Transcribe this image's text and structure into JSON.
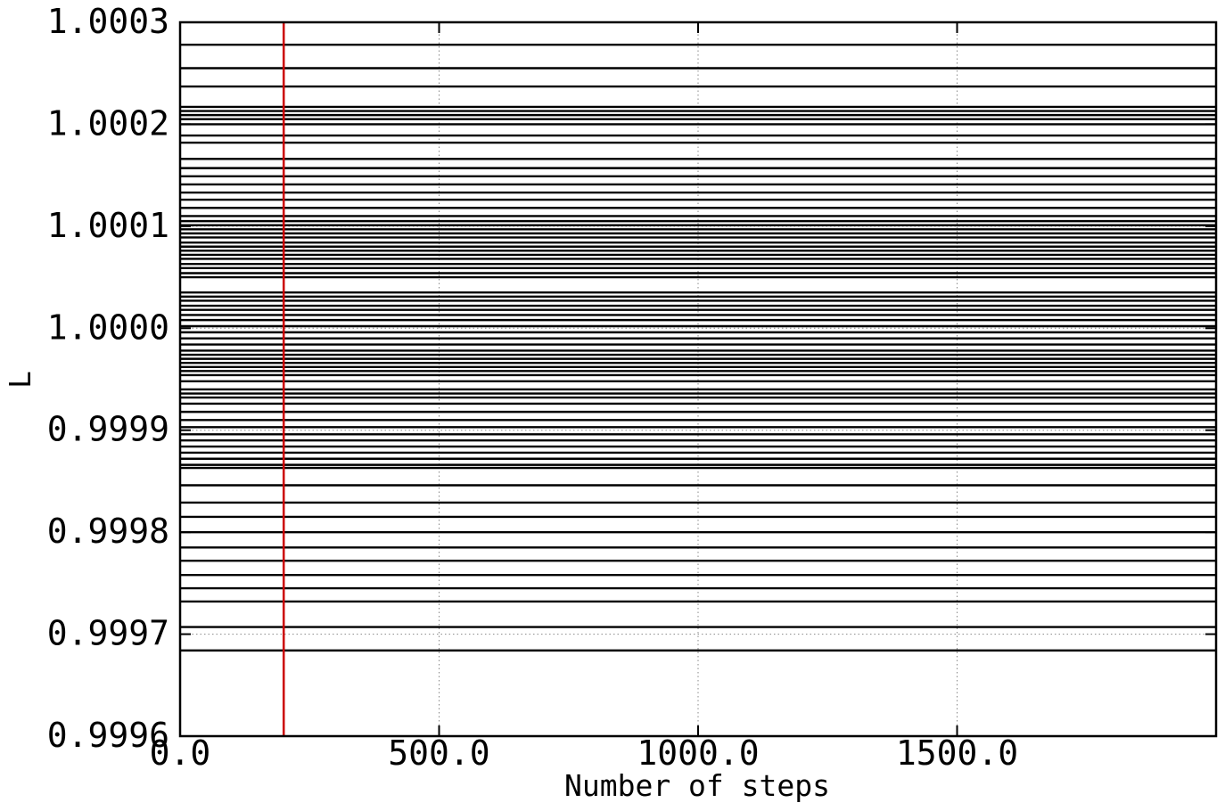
{
  "chart_data": {
    "type": "line",
    "title": "",
    "xlabel": "Number of steps",
    "ylabel": "L",
    "xlim": [
      0,
      2000
    ],
    "ylim": [
      0.9996,
      1.0003
    ],
    "xticks": [
      0,
      500,
      1000,
      1500
    ],
    "xtick_labels": [
      "0.0",
      "500.0",
      "1000.0",
      "1500.0"
    ],
    "yticks": [
      0.9996,
      0.9997,
      0.9998,
      0.9999,
      1.0,
      1.0001,
      1.0002,
      1.0003
    ],
    "ytick_labels": [
      "0.9996",
      "0.9997",
      "0.9998",
      "0.9999",
      "1.0000",
      "1.0001",
      "1.0002",
      "1.0003"
    ],
    "grid": true,
    "grid_style": "dotted",
    "series_color": "#000000",
    "series_note_values": "each series is a constant horizontal line at the listed L value over all steps",
    "series": [
      {
        "values": [
          1.000278
        ]
      },
      {
        "values": [
          1.000255
        ]
      },
      {
        "values": [
          1.000237
        ]
      },
      {
        "values": [
          1.000217
        ]
      },
      {
        "values": [
          1.000213
        ]
      },
      {
        "values": [
          1.000209
        ]
      },
      {
        "values": [
          1.000205
        ]
      },
      {
        "values": [
          1.0002
        ]
      },
      {
        "values": [
          1.000189
        ]
      },
      {
        "values": [
          1.000182
        ]
      },
      {
        "values": [
          1.000166
        ]
      },
      {
        "values": [
          1.000157
        ]
      },
      {
        "values": [
          1.000149
        ]
      },
      {
        "values": [
          1.000141
        ]
      },
      {
        "values": [
          1.000133
        ]
      },
      {
        "values": [
          1.000126
        ]
      },
      {
        "values": [
          1.000118
        ]
      },
      {
        "values": [
          1.00011
        ]
      },
      {
        "values": [
          1.000105
        ]
      },
      {
        "values": [
          1.000101
        ]
      },
      {
        "values": [
          1.000097
        ]
      },
      {
        "values": [
          1.000093
        ]
      },
      {
        "values": [
          1.000089
        ]
      },
      {
        "values": [
          1.000084
        ]
      },
      {
        "values": [
          1.00008
        ]
      },
      {
        "values": [
          1.000076
        ]
      },
      {
        "values": [
          1.000072
        ]
      },
      {
        "values": [
          1.000068
        ]
      },
      {
        "values": [
          1.000063
        ]
      },
      {
        "values": [
          1.000059
        ]
      },
      {
        "values": [
          1.000054
        ]
      },
      {
        "values": [
          1.00005
        ]
      },
      {
        "values": [
          1.000035
        ]
      },
      {
        "values": [
          1.000031
        ]
      },
      {
        "values": [
          1.000027
        ]
      },
      {
        "values": [
          1.000022
        ]
      },
      {
        "values": [
          1.000018
        ]
      },
      {
        "values": [
          1.000013
        ]
      },
      {
        "values": [
          1.000008
        ]
      },
      {
        "values": [
          1.000002
        ]
      },
      {
        "values": [
          0.999996
        ]
      },
      {
        "values": [
          0.99999
        ]
      },
      {
        "values": [
          0.999984
        ]
      },
      {
        "values": [
          0.999978
        ]
      },
      {
        "values": [
          0.999974
        ]
      },
      {
        "values": [
          0.99997
        ]
      },
      {
        "values": [
          0.999966
        ]
      },
      {
        "values": [
          0.999962
        ]
      },
      {
        "values": [
          0.999958
        ]
      },
      {
        "values": [
          0.999954
        ]
      },
      {
        "values": [
          0.999948
        ]
      },
      {
        "values": [
          0.99994
        ]
      },
      {
        "values": [
          0.999936
        ]
      },
      {
        "values": [
          0.999932
        ]
      },
      {
        "values": [
          0.999926
        ]
      },
      {
        "values": [
          0.999918
        ]
      },
      {
        "values": [
          0.99991
        ]
      },
      {
        "values": [
          0.999903
        ]
      },
      {
        "values": [
          0.999896
        ]
      },
      {
        "values": [
          0.99989
        ]
      },
      {
        "values": [
          0.999884
        ]
      },
      {
        "values": [
          0.999878
        ]
      },
      {
        "values": [
          0.999872
        ]
      },
      {
        "values": [
          0.999866
        ]
      },
      {
        "values": [
          0.999863
        ]
      },
      {
        "values": [
          0.999846
        ]
      },
      {
        "values": [
          0.999829
        ]
      },
      {
        "values": [
          0.999815
        ]
      },
      {
        "values": [
          0.9998
        ]
      },
      {
        "values": [
          0.999785
        ]
      },
      {
        "values": [
          0.999772
        ]
      },
      {
        "values": [
          0.999758
        ]
      },
      {
        "values": [
          0.999745
        ]
      },
      {
        "values": [
          0.999732
        ]
      },
      {
        "values": [
          0.999707
        ]
      },
      {
        "values": [
          0.999684
        ]
      }
    ],
    "vertical_marker": {
      "x": 200,
      "color": "#cc0000"
    }
  }
}
